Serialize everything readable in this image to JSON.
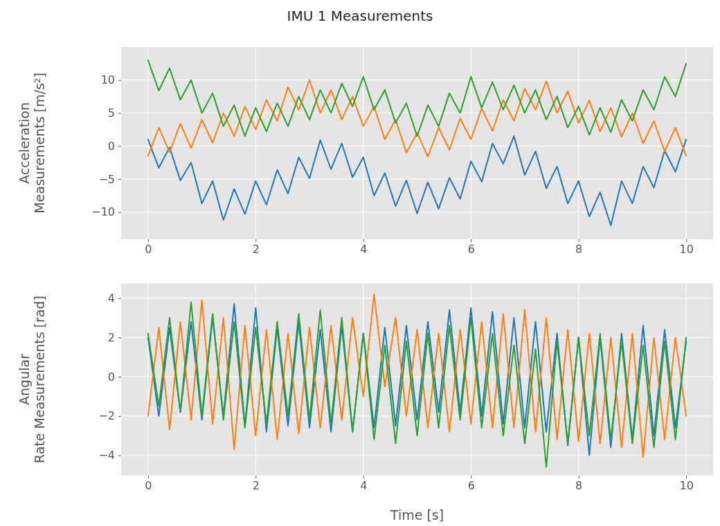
{
  "chart_data": [
    {
      "type": "line",
      "title": "IMU 1 Measurements",
      "ylabel": "Acceleration Measurements [m/s²]",
      "x": [
        0,
        0.2,
        0.4,
        0.6,
        0.8,
        1,
        1.2,
        1.4,
        1.6,
        1.8,
        2,
        2.2,
        2.4,
        2.6,
        2.8,
        3,
        3.2,
        3.4,
        3.6,
        3.8,
        4,
        4.2,
        4.4,
        4.6,
        4.8,
        5,
        5.2,
        5.4,
        5.6,
        5.8,
        6,
        6.2,
        6.4,
        6.6,
        6.8,
        7,
        7.2,
        7.4,
        7.6,
        7.8,
        8,
        8.2,
        8.4,
        8.6,
        8.8,
        9,
        9.2,
        9.4,
        9.6,
        9.8,
        10
      ],
      "series": [
        {
          "color": "#1f77b4",
          "values": [
            1.0,
            -3.3,
            -0.2,
            -5.2,
            -2.5,
            -8.7,
            -5.3,
            -11.2,
            -6.5,
            -10.3,
            -5.3,
            -8.9,
            -3.6,
            -7.2,
            -1.7,
            -4.9,
            0.9,
            -3.5,
            0.4,
            -4.7,
            -1.7,
            -7.5,
            -4.1,
            -9.1,
            -5.2,
            -10.2,
            -5.5,
            -9.5,
            -4.8,
            -8.0,
            -2.3,
            -5.4,
            0.4,
            -2.7,
            1.5,
            -4.4,
            -0.8,
            -6.4,
            -3.1,
            -8.7,
            -5.3,
            -10.7,
            -7.0,
            -12.0,
            -5.3,
            -8.7,
            -3.1,
            -6.3,
            -0.7,
            -3.9,
            1.0
          ]
        },
        {
          "color": "#ff7f0e",
          "values": [
            -1.5,
            2.8,
            -0.9,
            3.4,
            -0.3,
            4.0,
            0.5,
            5.0,
            1.5,
            6.0,
            2.5,
            7.0,
            3.8,
            8.9,
            5.5,
            10.0,
            5.0,
            8.5,
            4.0,
            7.5,
            3.0,
            6.0,
            1.0,
            4.0,
            -1.0,
            2.0,
            -1.6,
            2.8,
            -0.6,
            4.2,
            1.0,
            5.7,
            2.3,
            7.0,
            3.8,
            8.7,
            5.5,
            9.8,
            5.0,
            8.3,
            3.5,
            6.9,
            2.2,
            5.8,
            1.4,
            5.0,
            0.4,
            3.8,
            -0.8,
            2.8,
            -1.5
          ]
        },
        {
          "color": "#2ca02c",
          "values": [
            13.0,
            8.4,
            11.8,
            7.0,
            10.0,
            5.0,
            8.0,
            3.0,
            6.2,
            1.5,
            5.8,
            2.2,
            6.5,
            3.0,
            7.5,
            4.0,
            8.5,
            5.0,
            9.5,
            6.0,
            10.5,
            5.5,
            8.5,
            3.5,
            6.5,
            1.5,
            6.2,
            3.0,
            8.0,
            5.0,
            10.5,
            5.8,
            9.7,
            5.5,
            9.2,
            5.0,
            8.5,
            4.0,
            7.5,
            2.8,
            6.0,
            1.7,
            5.8,
            2.1,
            7.0,
            3.8,
            8.5,
            5.5,
            10.5,
            7.5,
            12.5
          ]
        }
      ],
      "xlim": [
        -0.5,
        10.5
      ],
      "xticks": [
        0,
        2,
        4,
        6,
        8,
        10
      ],
      "ylim": [
        -14.1,
        15.0
      ],
      "yticks": [
        {
          "value": -10,
          "label": "−10"
        },
        {
          "value": -5,
          "label": "−5"
        },
        0,
        5,
        10
      ],
      "grid": true
    },
    {
      "type": "line",
      "xlabel": "Time [s]",
      "ylabel": "Angular Rate Measurements [rad]",
      "x": [
        0,
        0.2,
        0.4,
        0.6,
        0.8,
        1,
        1.2,
        1.4,
        1.6,
        1.8,
        2,
        2.2,
        2.4,
        2.6,
        2.8,
        3,
        3.2,
        3.4,
        3.6,
        3.8,
        4,
        4.2,
        4.4,
        4.6,
        4.8,
        5,
        5.2,
        5.4,
        5.6,
        5.8,
        6,
        6.2,
        6.4,
        6.6,
        6.8,
        7,
        7.2,
        7.4,
        7.6,
        7.8,
        8,
        8.2,
        8.4,
        8.6,
        8.8,
        9,
        9.2,
        9.4,
        9.6,
        9.8,
        10
      ],
      "series": [
        {
          "color": "#1f77b4",
          "values": [
            2.0,
            -2.0,
            2.5,
            -1.8,
            2.8,
            -2.2,
            3.0,
            -2.0,
            3.7,
            -2.5,
            3.5,
            -2.8,
            2.5,
            -2.5,
            2.8,
            -2.6,
            2.4,
            -2.8,
            2.6,
            -2.8,
            2.2,
            -2.6,
            2.5,
            -2.5,
            2.6,
            -2.2,
            2.8,
            -1.8,
            3.4,
            -1.8,
            3.5,
            -2.0,
            3.3,
            -2.4,
            3.0,
            -2.6,
            2.8,
            -2.8,
            2.2,
            -3.5,
            2.0,
            -4.0,
            2.0,
            -3.6,
            2.2,
            -3.2,
            2.6,
            -3.0,
            2.4,
            -2.6,
            1.8
          ]
        },
        {
          "color": "#ff7f0e",
          "values": [
            -2.0,
            2.5,
            -2.7,
            2.8,
            -2.2,
            3.9,
            -2.4,
            3.0,
            -3.7,
            2.6,
            -3.0,
            2.4,
            -3.2,
            2.2,
            -2.9,
            2.5,
            -2.6,
            2.6,
            -2.2,
            3.0,
            -1.0,
            4.2,
            -0.5,
            3.0,
            -2.0,
            2.4,
            -2.6,
            2.2,
            -2.8,
            2.4,
            -2.4,
            2.8,
            -2.6,
            3.2,
            -2.6,
            3.4,
            -2.8,
            3.0,
            -3.2,
            2.4,
            -3.3,
            2.2,
            -3.4,
            2.0,
            -3.6,
            2.2,
            -4.1,
            2.0,
            -3.2,
            2.0,
            -2.0
          ]
        },
        {
          "color": "#2ca02c",
          "values": [
            2.2,
            -1.5,
            3.0,
            -1.8,
            3.8,
            -2.0,
            3.2,
            -2.2,
            2.8,
            -2.6,
            2.5,
            -2.4,
            2.8,
            -2.0,
            3.2,
            -2.2,
            3.4,
            -2.4,
            3.0,
            -2.8,
            2.2,
            -3.2,
            1.6,
            -3.4,
            1.8,
            -3.0,
            2.2,
            -2.6,
            2.6,
            -2.2,
            3.0,
            -2.6,
            2.2,
            -3.0,
            1.6,
            -3.4,
            1.4,
            -4.6,
            1.8,
            -3.4,
            2.0,
            -3.0,
            2.2,
            -3.2,
            1.8,
            -3.4,
            1.6,
            -3.6,
            1.8,
            -3.2,
            2.0
          ]
        }
      ],
      "xlim": [
        -0.5,
        10.5
      ],
      "xticks": [
        0,
        2,
        4,
        6,
        8,
        10
      ],
      "ylim": [
        -5.03,
        4.75
      ],
      "yticks": [
        {
          "value": -4,
          "label": "−4"
        },
        {
          "value": -2,
          "label": "−2"
        },
        0,
        2,
        4
      ],
      "grid": true
    }
  ]
}
